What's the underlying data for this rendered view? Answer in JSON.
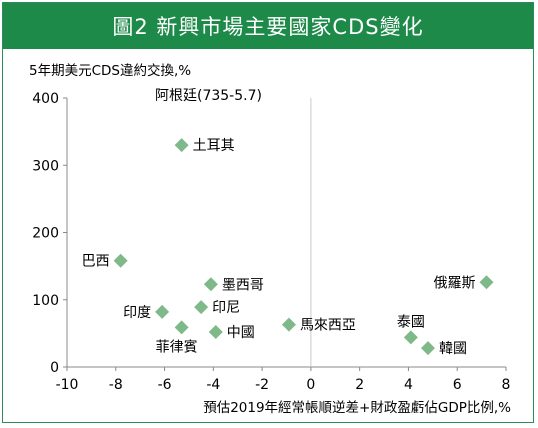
{
  "title": "圖2 新興市場主要國家CDS變化",
  "chart_data": {
    "type": "scatter",
    "ylabel": "5年期美元CDS違約交換,%",
    "xlabel": "預估2019年經常帳順逆差+財政盈虧佔GDP比例,%",
    "xlim": [
      -10,
      8
    ],
    "ylim": [
      0,
      400
    ],
    "x_ticks": [
      -10,
      -8,
      -6,
      -4,
      -2,
      0,
      2,
      4,
      6,
      8
    ],
    "y_ticks": [
      0,
      100,
      200,
      300,
      400
    ],
    "marker_color": "#7fb98a",
    "annotation": "阿根廷(735-5.7)",
    "points": [
      {
        "label": "土耳其",
        "x": -5.3,
        "y": 330,
        "pos": "right"
      },
      {
        "label": "巴西",
        "x": -7.8,
        "y": 158,
        "pos": "left"
      },
      {
        "label": "墨西哥",
        "x": -4.1,
        "y": 123,
        "pos": "right"
      },
      {
        "label": "印尼",
        "x": -4.5,
        "y": 89,
        "pos": "right"
      },
      {
        "label": "印度",
        "x": -6.1,
        "y": 82,
        "pos": "left"
      },
      {
        "label": "菲律賓",
        "x": -5.3,
        "y": 59,
        "pos": "below-left"
      },
      {
        "label": "中國",
        "x": -3.9,
        "y": 52,
        "pos": "right"
      },
      {
        "label": "馬來西亞",
        "x": -0.9,
        "y": 63,
        "pos": "right"
      },
      {
        "label": "俄羅斯",
        "x": 7.2,
        "y": 126,
        "pos": "left"
      },
      {
        "label": "泰國",
        "x": 4.1,
        "y": 44,
        "pos": "above"
      },
      {
        "label": "韓國",
        "x": 4.8,
        "y": 28,
        "pos": "right"
      }
    ]
  }
}
